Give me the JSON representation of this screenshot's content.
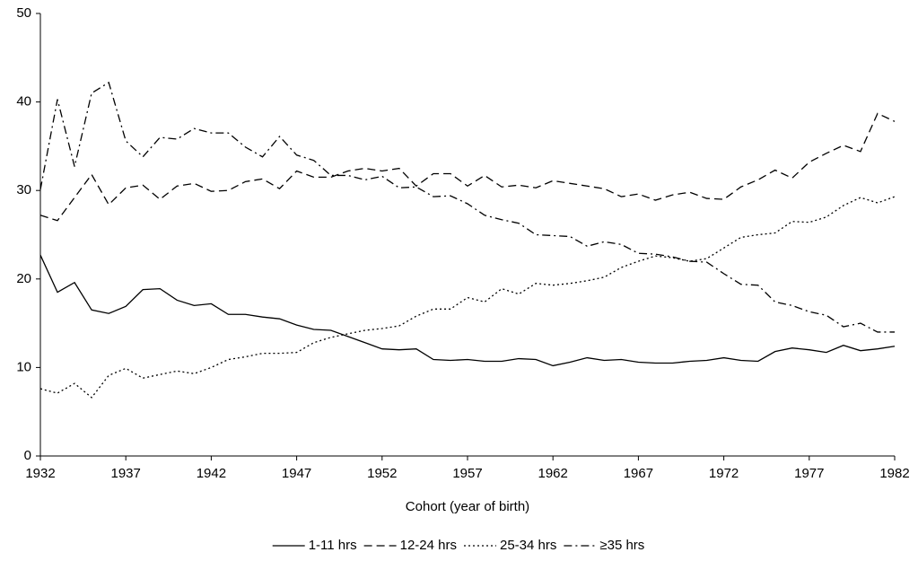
{
  "chart_data": {
    "type": "line",
    "xlabel": "Cohort (year of birth)",
    "x": [
      1932,
      1933,
      1934,
      1935,
      1936,
      1937,
      1938,
      1939,
      1940,
      1941,
      1942,
      1943,
      1944,
      1945,
      1946,
      1947,
      1948,
      1949,
      1950,
      1951,
      1952,
      1953,
      1954,
      1955,
      1956,
      1957,
      1958,
      1959,
      1960,
      1961,
      1962,
      1963,
      1964,
      1965,
      1966,
      1967,
      1968,
      1969,
      1970,
      1971,
      1972,
      1973,
      1974,
      1975,
      1976,
      1977,
      1978,
      1979,
      1980,
      1981,
      1982
    ],
    "series": [
      {
        "name": "1-11 hrs",
        "color": "#000000",
        "dash": "solid",
        "values": [
          22.7,
          18.5,
          19.6,
          16.5,
          16.1,
          16.9,
          18.8,
          18.9,
          17.6,
          17.0,
          17.2,
          16.0,
          16.0,
          15.7,
          15.5,
          14.8,
          14.3,
          14.2,
          13.5,
          12.8,
          12.1,
          12.0,
          12.1,
          10.9,
          10.8,
          10.9,
          10.7,
          10.7,
          11.0,
          10.9,
          10.2,
          10.6,
          11.1,
          10.8,
          10.9,
          10.6,
          10.5,
          10.5,
          10.7,
          10.8,
          11.1,
          10.8,
          10.7,
          11.8,
          12.2,
          12.0,
          11.7,
          12.5,
          11.9,
          12.1,
          12.4
        ]
      },
      {
        "name": "12-24 hrs",
        "color": "#000000",
        "dash": "dashed",
        "values": [
          27.2,
          26.6,
          29.2,
          31.8,
          28.4,
          30.3,
          30.6,
          29.0,
          30.5,
          30.8,
          29.9,
          30.0,
          31.0,
          31.3,
          30.2,
          32.2,
          31.5,
          31.5,
          32.2,
          32.5,
          32.2,
          32.5,
          30.5,
          31.9,
          31.9,
          30.5,
          31.7,
          30.4,
          30.6,
          30.3,
          31.1,
          30.8,
          30.5,
          30.2,
          29.3,
          29.6,
          28.9,
          29.5,
          29.8,
          29.1,
          29.0,
          30.4,
          31.2,
          32.3,
          31.4,
          33.2,
          34.2,
          35.1,
          34.4,
          38.7,
          37.8
        ]
      },
      {
        "name": "25-34 hrs",
        "color": "#000000",
        "dash": "dotted",
        "values": [
          7.6,
          7.1,
          8.2,
          6.6,
          9.1,
          9.9,
          8.8,
          9.2,
          9.6,
          9.3,
          10.0,
          10.9,
          11.2,
          11.6,
          11.6,
          11.7,
          12.8,
          13.4,
          13.8,
          14.2,
          14.4,
          14.7,
          15.8,
          16.6,
          16.6,
          17.9,
          17.4,
          18.9,
          18.3,
          19.5,
          19.3,
          19.5,
          19.8,
          20.2,
          21.3,
          22.0,
          22.6,
          22.4,
          22.0,
          22.3,
          23.5,
          24.7,
          25.0,
          25.2,
          26.5,
          26.4,
          27.0,
          28.3,
          29.2,
          28.6,
          29.3
        ]
      },
      {
        "name": "≥35 hrs",
        "color": "#000000",
        "dash": "dashdot",
        "values": [
          30.1,
          40.3,
          32.7,
          41.0,
          42.2,
          35.6,
          33.8,
          36.0,
          35.8,
          37.0,
          36.5,
          36.5,
          34.9,
          33.8,
          36.1,
          34.0,
          33.4,
          31.7,
          31.7,
          31.2,
          31.6,
          30.3,
          30.4,
          29.3,
          29.4,
          28.5,
          27.2,
          26.7,
          26.3,
          25.0,
          24.9,
          24.8,
          23.7,
          24.2,
          23.9,
          22.9,
          22.8,
          22.5,
          22.0,
          21.9,
          20.6,
          19.4,
          19.3,
          17.4,
          17.0,
          16.3,
          15.9,
          14.6,
          15.0,
          14.0,
          14.0
        ]
      }
    ],
    "xlim": [
      1932,
      1982
    ],
    "xticks": [
      1932,
      1937,
      1942,
      1947,
      1952,
      1957,
      1962,
      1967,
      1972,
      1977,
      1982
    ],
    "ylim": [
      0,
      50
    ],
    "yticks": [
      0,
      10,
      20,
      30,
      40,
      50
    ],
    "grid": false,
    "legend": "bottom"
  }
}
